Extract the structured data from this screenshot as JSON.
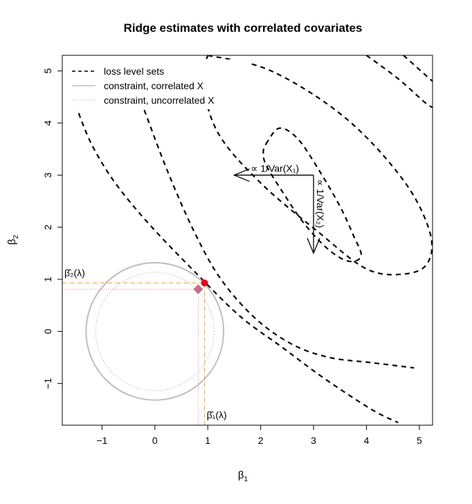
{
  "chart_data": {
    "type": "line",
    "title": "Ridge estimates with correlated covariates",
    "xlabel": "β",
    "xlabel_sub": "1",
    "ylabel": "β",
    "ylabel_sub": "2",
    "xlim": [
      -1.75,
      5.25
    ],
    "ylim": [
      -1.8,
      5.3
    ],
    "x_ticks": [
      -1,
      0,
      1,
      2,
      3,
      4,
      5
    ],
    "y_ticks": [
      -1,
      0,
      1,
      2,
      3,
      4,
      5
    ],
    "x_tick_labels": [
      "−1",
      "0",
      "1",
      "2",
      "3",
      "4",
      "5"
    ],
    "y_tick_labels": [
      "−1",
      "0",
      "1",
      "2",
      "3",
      "4",
      "5"
    ],
    "grid": false,
    "legend_position": "top-left",
    "legend": [
      {
        "label": "loss level sets",
        "style": "dashed",
        "color": "#000000"
      },
      {
        "label": "constraint, correlated X",
        "style": "solid",
        "color": "#bebebe"
      },
      {
        "label": "constraint, uncorrelated X",
        "style": "dotted",
        "color": "#9a9a9a"
      }
    ],
    "loss_center": [
      3.0,
      2.5
    ],
    "loss_level_sets": [
      [
        [
          2.1,
          3.6
        ],
        [
          2.35,
          3.9
        ],
        [
          2.7,
          3.7
        ],
        [
          3.1,
          3.1
        ],
        [
          3.5,
          2.4
        ],
        [
          3.75,
          1.85
        ],
        [
          3.9,
          1.45
        ],
        [
          3.65,
          1.35
        ],
        [
          3.25,
          1.6
        ],
        [
          2.8,
          2.1
        ],
        [
          2.4,
          2.7
        ],
        [
          2.1,
          3.2
        ],
        [
          2.05,
          3.45
        ],
        [
          2.1,
          3.6
        ]
      ],
      [
        [
          1.0,
          5.3
        ],
        [
          2.2,
          5.0
        ],
        [
          3.6,
          4.1
        ],
        [
          4.7,
          2.9
        ],
        [
          5.2,
          1.9
        ],
        [
          5.15,
          1.3
        ],
        [
          4.7,
          1.1
        ],
        [
          4.0,
          1.2
        ],
        [
          3.1,
          1.9
        ],
        [
          2.0,
          2.85
        ],
        [
          1.2,
          3.8
        ],
        [
          0.9,
          4.8
        ],
        [
          1.0,
          5.3
        ]
      ],
      [
        [
          -0.2,
          4.25
        ],
        [
          0.25,
          3.05
        ],
        [
          0.75,
          1.9
        ],
        [
          1.25,
          1.0
        ],
        [
          1.9,
          0.25
        ],
        [
          2.6,
          -0.25
        ],
        [
          3.3,
          -0.5
        ],
        [
          4.1,
          -0.6
        ],
        [
          4.9,
          -0.7
        ]
      ],
      [
        [
          -1.5,
          4.35
        ],
        [
          -1.2,
          3.6
        ],
        [
          -0.75,
          2.85
        ],
        [
          -0.1,
          2.05
        ],
        [
          0.75,
          1.15
        ],
        [
          1.6,
          0.3
        ],
        [
          2.4,
          -0.3
        ],
        [
          3.2,
          -0.9
        ],
        [
          4.1,
          -1.5
        ],
        [
          4.6,
          -1.75
        ]
      ],
      [
        [
          4.0,
          5.3
        ],
        [
          4.6,
          4.85
        ],
        [
          5.1,
          4.4
        ],
        [
          5.25,
          4.3
        ]
      ],
      [
        [
          4.7,
          5.3
        ],
        [
          5.25,
          4.8
        ]
      ]
    ],
    "constraint_correlated": {
      "center": [
        0,
        0
      ],
      "radius": 1.3,
      "color": "#bebebe"
    },
    "constraint_uncorrelated": {
      "center": [
        0,
        0
      ],
      "radius": 1.12,
      "color": "#9a9a9a"
    },
    "ridge_estimate_correlated": {
      "point": [
        0.94,
        0.93
      ],
      "color": "#e8001c"
    },
    "ridge_estimate_uncorrelated": {
      "point": [
        0.82,
        0.81
      ],
      "color": "#c96a8a"
    },
    "arrow_horizontal": {
      "from": [
        3.0,
        3.0
      ],
      "to": [
        1.5,
        3.0
      ],
      "label": "∝ 1/Var(X₁)"
    },
    "arrow_vertical": {
      "from": [
        3.0,
        3.0
      ],
      "to": [
        3.0,
        1.5
      ],
      "label": "∝ 1/Var(X₂)"
    },
    "label_beta1": "β̂₁(λ)",
    "label_beta2": "β̂₂(λ)"
  }
}
